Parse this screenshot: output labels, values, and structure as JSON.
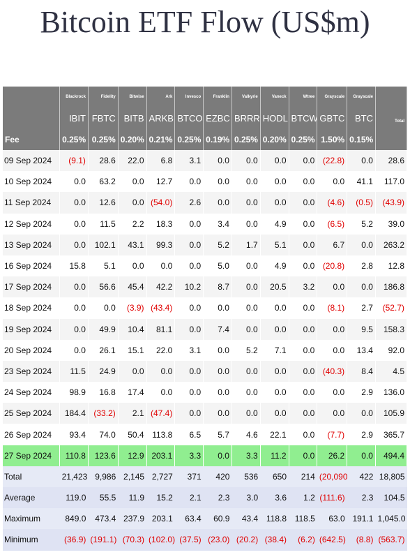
{
  "page_title": "Bitcoin ETF Flow (US$m)",
  "columns": [
    {
      "issuer": "Blackrock",
      "ticker": "IBIT",
      "fee": "0.25%"
    },
    {
      "issuer": "Fidelity",
      "ticker": "FBTC",
      "fee": "0.25%"
    },
    {
      "issuer": "Bitwise",
      "ticker": "BITB",
      "fee": "0.20%"
    },
    {
      "issuer": "Ark",
      "ticker": "ARKB",
      "fee": "0.21%"
    },
    {
      "issuer": "Invesco",
      "ticker": "BTCO",
      "fee": "0.25%"
    },
    {
      "issuer": "Franklin",
      "ticker": "EZBC",
      "fee": "0.19%"
    },
    {
      "issuer": "Valkyrie",
      "ticker": "BRRR",
      "fee": "0.25%"
    },
    {
      "issuer": "Vaneck",
      "ticker": "HODL",
      "fee": "0.20%"
    },
    {
      "issuer": "Wtree",
      "ticker": "BTCW",
      "fee": "0.25%"
    },
    {
      "issuer": "Grayscale",
      "ticker": "GBTC",
      "fee": "1.50%"
    },
    {
      "issuer": "Grayscale",
      "ticker": "BTC",
      "fee": "0.15%"
    }
  ],
  "total_header": "Total",
  "fee_label": "Fee",
  "rows": [
    {
      "date": "09 Sep 2024",
      "values": [
        "(9.1)",
        "28.6",
        "22.0",
        "6.8",
        "3.1",
        "0.0",
        "0.0",
        "0.0",
        "0.0",
        "(22.8)",
        "0.0"
      ],
      "total": "28.6"
    },
    {
      "date": "10 Sep 2024",
      "values": [
        "0.0",
        "63.2",
        "0.0",
        "12.7",
        "0.0",
        "0.0",
        "0.0",
        "0.0",
        "0.0",
        "0.0",
        "41.1"
      ],
      "total": "117.0"
    },
    {
      "date": "11 Sep 2024",
      "values": [
        "0.0",
        "12.6",
        "0.0",
        "(54.0)",
        "2.6",
        "0.0",
        "0.0",
        "0.0",
        "0.0",
        "(4.6)",
        "(0.5)"
      ],
      "total": "(43.9)"
    },
    {
      "date": "12 Sep 2024",
      "values": [
        "0.0",
        "11.5",
        "2.2",
        "18.3",
        "0.0",
        "3.4",
        "0.0",
        "4.9",
        "0.0",
        "(6.5)",
        "5.2"
      ],
      "total": "39.0"
    },
    {
      "date": "13 Sep 2024",
      "values": [
        "0.0",
        "102.1",
        "43.1",
        "99.3",
        "0.0",
        "5.2",
        "1.7",
        "5.1",
        "0.0",
        "6.7",
        "0.0"
      ],
      "total": "263.2"
    },
    {
      "date": "16 Sep 2024",
      "values": [
        "15.8",
        "5.1",
        "0.0",
        "0.0",
        "0.0",
        "5.0",
        "0.0",
        "4.9",
        "0.0",
        "(20.8)",
        "2.8"
      ],
      "total": "12.8"
    },
    {
      "date": "17 Sep 2024",
      "values": [
        "0.0",
        "56.6",
        "45.4",
        "42.2",
        "10.2",
        "8.7",
        "0.0",
        "20.5",
        "3.2",
        "0.0",
        "0.0"
      ],
      "total": "186.8"
    },
    {
      "date": "18 Sep 2024",
      "values": [
        "0.0",
        "0.0",
        "(3.9)",
        "(43.4)",
        "0.0",
        "0.0",
        "0.0",
        "0.0",
        "0.0",
        "(8.1)",
        "2.7"
      ],
      "total": "(52.7)"
    },
    {
      "date": "19 Sep 2024",
      "values": [
        "0.0",
        "49.9",
        "10.4",
        "81.1",
        "0.0",
        "7.4",
        "0.0",
        "0.0",
        "0.0",
        "0.0",
        "9.5"
      ],
      "total": "158.3"
    },
    {
      "date": "20 Sep 2024",
      "values": [
        "0.0",
        "26.1",
        "15.1",
        "22.0",
        "3.1",
        "0.0",
        "5.2",
        "7.1",
        "0.0",
        "0.0",
        "13.4"
      ],
      "total": "92.0"
    },
    {
      "date": "23 Sep 2024",
      "values": [
        "11.5",
        "24.9",
        "0.0",
        "0.0",
        "0.0",
        "0.0",
        "0.0",
        "0.0",
        "0.0",
        "(40.3)",
        "8.4"
      ],
      "total": "4.5"
    },
    {
      "date": "24 Sep 2024",
      "values": [
        "98.9",
        "16.8",
        "17.4",
        "0.0",
        "0.0",
        "0.0",
        "0.0",
        "0.0",
        "0.0",
        "0.0",
        "2.9"
      ],
      "total": "136.0"
    },
    {
      "date": "25 Sep 2024",
      "values": [
        "184.4",
        "(33.2)",
        "2.1",
        "(47.4)",
        "0.0",
        "0.0",
        "0.0",
        "0.0",
        "0.0",
        "0.0",
        "0.0"
      ],
      "total": "105.9"
    },
    {
      "date": "26 Sep 2024",
      "values": [
        "93.4",
        "74.0",
        "50.4",
        "113.8",
        "6.5",
        "5.7",
        "4.6",
        "22.1",
        "0.0",
        "(7.7)",
        "2.9"
      ],
      "total": "365.7"
    },
    {
      "date": "27 Sep 2024",
      "values": [
        "110.8",
        "123.6",
        "12.9",
        "203.1",
        "3.3",
        "0.0",
        "3.3",
        "11.2",
        "0.0",
        "26.2",
        "0.0"
      ],
      "total": "494.4",
      "highlight": true
    }
  ],
  "summary": [
    {
      "label": "Total",
      "values": [
        "21,423",
        "9,986",
        "2,145",
        "2,727",
        "371",
        "420",
        "536",
        "650",
        "214",
        "(20,090)",
        "422"
      ],
      "total": "18,805"
    },
    {
      "label": "Average",
      "values": [
        "119.0",
        "55.5",
        "11.9",
        "15.2",
        "2.1",
        "2.3",
        "3.0",
        "3.6",
        "1.2",
        "(111.6)",
        "2.3"
      ],
      "total": "104.5"
    },
    {
      "label": "Maximum",
      "values": [
        "849.0",
        "473.4",
        "237.9",
        "203.1",
        "63.4",
        "60.9",
        "43.4",
        "118.8",
        "118.5",
        "63.0",
        "191.1"
      ],
      "total": "1,045.0"
    },
    {
      "label": "Minimum",
      "values": [
        "(36.9)",
        "(191.1)",
        "(70.3)",
        "(102.0)",
        "(37.5)",
        "(23.0)",
        "(20.2)",
        "(38.4)",
        "(6.2)",
        "(642.5)",
        "(8.8)"
      ],
      "total": "(563.7)"
    }
  ],
  "colors": {
    "header_bg": "#7b7b7b",
    "negative": "#e00000",
    "highlight_row": "#90ee90",
    "summary_bg": "#e6eaf6",
    "title": "#2f3142"
  }
}
